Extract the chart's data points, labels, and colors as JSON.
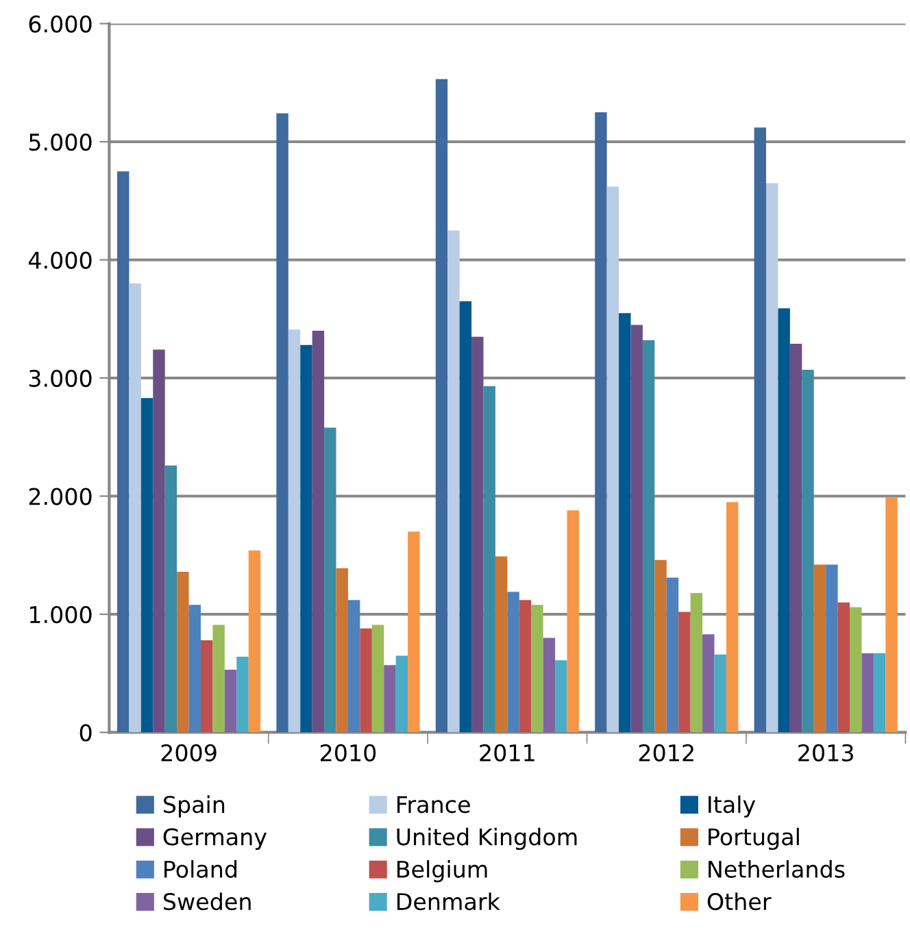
{
  "chart_data": {
    "type": "bar",
    "categories": [
      "2009",
      "2010",
      "2011",
      "2012",
      "2013"
    ],
    "series": [
      {
        "name": "Spain",
        "color": "#3f6a9e",
        "values": [
          4750,
          5240,
          5530,
          5250,
          5120
        ]
      },
      {
        "name": "France",
        "color": "#b9cde6",
        "values": [
          3800,
          3410,
          4250,
          4620,
          4650
        ]
      },
      {
        "name": "Italy",
        "color": "#005a8f",
        "values": [
          2830,
          3280,
          3650,
          3550,
          3590
        ]
      },
      {
        "name": "Germany",
        "color": "#6a5086",
        "values": [
          3240,
          3400,
          3350,
          3450,
          3290
        ]
      },
      {
        "name": "United Kingdom",
        "color": "#3c8ca3",
        "values": [
          2260,
          2580,
          2930,
          3320,
          3070
        ]
      },
      {
        "name": "Portugal",
        "color": "#cc7633",
        "values": [
          1360,
          1390,
          1490,
          1460,
          1420
        ]
      },
      {
        "name": "Poland",
        "color": "#4f81bd",
        "values": [
          1080,
          1120,
          1190,
          1310,
          1420
        ]
      },
      {
        "name": "Belgium",
        "color": "#c0504d",
        "values": [
          780,
          880,
          1120,
          1020,
          1100
        ]
      },
      {
        "name": "Netherlands",
        "color": "#9bbb59",
        "values": [
          910,
          910,
          1080,
          1180,
          1060
        ]
      },
      {
        "name": "Sweden",
        "color": "#8064a2",
        "values": [
          530,
          570,
          800,
          830,
          670
        ]
      },
      {
        "name": "Denmark",
        "color": "#4bacc6",
        "values": [
          640,
          650,
          610,
          660,
          670
        ]
      },
      {
        "name": "Other",
        "color": "#f79646",
        "values": [
          1540,
          1700,
          1880,
          1950,
          1990
        ]
      }
    ],
    "ylim": [
      0,
      6000
    ],
    "yticks": [
      {
        "value": 0,
        "label": "0"
      },
      {
        "value": 1000,
        "label": "1.000"
      },
      {
        "value": 2000,
        "label": "2.000"
      },
      {
        "value": 3000,
        "label": "3.000"
      },
      {
        "value": 4000,
        "label": "4.000"
      },
      {
        "value": 5000,
        "label": "5.000"
      },
      {
        "value": 6000,
        "label": "6.000"
      }
    ],
    "grid": "y",
    "legend": "bottom"
  }
}
